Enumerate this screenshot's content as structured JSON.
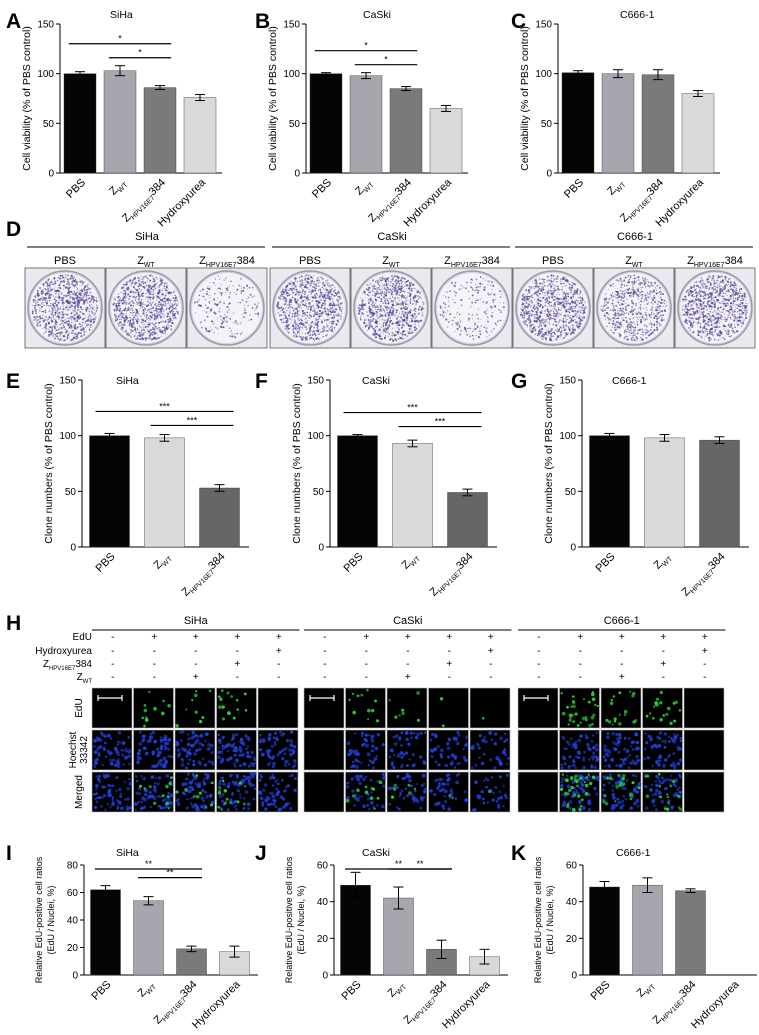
{
  "figure": {
    "panel_letters": [
      "A",
      "B",
      "C",
      "D",
      "E",
      "F",
      "G",
      "H",
      "I",
      "J",
      "K"
    ]
  },
  "chart_data": [
    {
      "panel": "A",
      "type": "bar",
      "title": "SiHa",
      "ylabel": "Cell viability (% of PBS control)",
      "ylim": [
        0,
        150
      ],
      "yticks": [
        0,
        50,
        100,
        150
      ],
      "categories": [
        {
          "main": "PBS",
          "sub": ""
        },
        {
          "main": "Z",
          "sub": "WT",
          "after": ""
        },
        {
          "main": "Z",
          "sub": "HPV16E7",
          "after": "384"
        },
        {
          "main": "Hydroxyurea",
          "sub": ""
        }
      ],
      "values": [
        100,
        103,
        86,
        76
      ],
      "errors": [
        2,
        5,
        2,
        3
      ],
      "colors": [
        "#050505",
        "#a6a6ae",
        "#7a7a7a",
        "#d9d9d9"
      ],
      "significance": [
        {
          "from": 0,
          "to": 2,
          "label": "*"
        },
        {
          "from": 1,
          "to": 2,
          "label": "*"
        }
      ]
    },
    {
      "panel": "B",
      "type": "bar",
      "title": "CaSki",
      "ylabel": "Cell viability (% of PBS control)",
      "ylim": [
        0,
        150
      ],
      "yticks": [
        0,
        50,
        100,
        150
      ],
      "categories": [
        {
          "main": "PBS",
          "sub": ""
        },
        {
          "main": "Z",
          "sub": "WT",
          "after": ""
        },
        {
          "main": "Z",
          "sub": "HPV16E7",
          "after": "384"
        },
        {
          "main": "Hydroxyurea",
          "sub": ""
        }
      ],
      "values": [
        100,
        98,
        85,
        65
      ],
      "errors": [
        1,
        3,
        2,
        3
      ],
      "colors": [
        "#050505",
        "#a6a6ae",
        "#7a7a7a",
        "#d9d9d9"
      ],
      "significance": [
        {
          "from": 0,
          "to": 2,
          "label": "*"
        },
        {
          "from": 1,
          "to": 2,
          "label": "*"
        }
      ]
    },
    {
      "panel": "C",
      "type": "bar",
      "title": "C666-1",
      "ylabel": "Cell viability (% of PBS control)",
      "ylim": [
        0,
        150
      ],
      "yticks": [
        0,
        50,
        100,
        150
      ],
      "categories": [
        {
          "main": "PBS",
          "sub": ""
        },
        {
          "main": "Z",
          "sub": "WT",
          "after": ""
        },
        {
          "main": "Z",
          "sub": "HPV16E7",
          "after": "384"
        },
        {
          "main": "Hydroxyurea",
          "sub": ""
        }
      ],
      "values": [
        101,
        100,
        99,
        80
      ],
      "errors": [
        2,
        4,
        5,
        3
      ],
      "colors": [
        "#050505",
        "#a6a6ae",
        "#7a7a7a",
        "#d9d9d9"
      ],
      "significance": []
    },
    {
      "panel": "E",
      "type": "bar",
      "title": "SiHa",
      "ylabel": "Clone numbers (% of PBS control)",
      "ylim": [
        0,
        150
      ],
      "yticks": [
        0,
        50,
        100,
        150
      ],
      "categories": [
        {
          "main": "PBS",
          "sub": ""
        },
        {
          "main": "Z",
          "sub": "WT",
          "after": ""
        },
        {
          "main": "Z",
          "sub": "HPV16E7",
          "after": "384"
        }
      ],
      "values": [
        100,
        98,
        53
      ],
      "errors": [
        2,
        3,
        3
      ],
      "colors": [
        "#050505",
        "#d9d9d9",
        "#666666"
      ],
      "significance": [
        {
          "from": 0,
          "to": 2,
          "label": "***"
        },
        {
          "from": 1,
          "to": 2,
          "label": "***"
        }
      ]
    },
    {
      "panel": "F",
      "type": "bar",
      "title": "CaSki",
      "ylabel": "Clone numbers (% of PBS control)",
      "ylim": [
        0,
        150
      ],
      "yticks": [
        0,
        50,
        100,
        150
      ],
      "categories": [
        {
          "main": "PBS",
          "sub": ""
        },
        {
          "main": "Z",
          "sub": "WT",
          "after": ""
        },
        {
          "main": "Z",
          "sub": "HPV16E7",
          "after": "384"
        }
      ],
      "values": [
        100,
        93,
        49
      ],
      "errors": [
        1,
        3,
        3
      ],
      "colors": [
        "#050505",
        "#d9d9d9",
        "#666666"
      ],
      "significance": [
        {
          "from": 0,
          "to": 2,
          "label": "***"
        },
        {
          "from": 1,
          "to": 2,
          "label": "***"
        }
      ]
    },
    {
      "panel": "G",
      "type": "bar",
      "title": "C666-1",
      "ylabel": "Clone numbers (% of PBS control)",
      "ylim": [
        0,
        150
      ],
      "yticks": [
        0,
        50,
        100,
        150
      ],
      "categories": [
        {
          "main": "PBS",
          "sub": ""
        },
        {
          "main": "Z",
          "sub": "WT",
          "after": ""
        },
        {
          "main": "Z",
          "sub": "HPV16E7",
          "after": "384"
        }
      ],
      "values": [
        100,
        98,
        96
      ],
      "errors": [
        2,
        3,
        3
      ],
      "colors": [
        "#050505",
        "#d9d9d9",
        "#666666"
      ],
      "significance": []
    },
    {
      "panel": "I",
      "type": "bar",
      "title": "SiHa",
      "ylabel": "Relative EdU-positive cell ratios (EdU / Nuclei, %)",
      "ylabel_lines": [
        "Relative EdU-positive cell ratios",
        "(EdU / Nuclei, %)"
      ],
      "ylim": [
        0,
        80
      ],
      "yticks": [
        0,
        20,
        40,
        60,
        80
      ],
      "categories": [
        {
          "main": "PBS",
          "sub": ""
        },
        {
          "main": "Z",
          "sub": "WT",
          "after": ""
        },
        {
          "main": "Z",
          "sub": "HPV16E7",
          "after": "384"
        },
        {
          "main": "Hydroxyurea",
          "sub": ""
        }
      ],
      "values": [
        62,
        54,
        19,
        17
      ],
      "errors": [
        3,
        3,
        2,
        4
      ],
      "colors": [
        "#050505",
        "#a6a6ae",
        "#7a7a7a",
        "#d9d9d9"
      ],
      "significance": [
        {
          "from": 0,
          "to": 2,
          "label": "**"
        },
        {
          "from": 1,
          "to": 2,
          "label": "**"
        }
      ]
    },
    {
      "panel": "J",
      "type": "bar",
      "title": "CaSki",
      "ylabel": "Relative EdU-positive cell ratios (EdU / Nuclei, %)",
      "ylabel_lines": [
        "Relative EdU-positive cell ratios",
        "(EdU / Nuclei, %)"
      ],
      "ylim": [
        0,
        60
      ],
      "yticks": [
        0,
        20,
        40,
        60
      ],
      "categories": [
        {
          "main": "PBS",
          "sub": ""
        },
        {
          "main": "Z",
          "sub": "WT",
          "after": ""
        },
        {
          "main": "Z",
          "sub": "HPV16E7",
          "after": "384"
        },
        {
          "main": "Hydroxyurea",
          "sub": ""
        }
      ],
      "values": [
        49,
        42,
        14,
        10
      ],
      "errors": [
        7,
        6,
        5,
        4
      ],
      "colors": [
        "#050505",
        "#a6a6ae",
        "#7a7a7a",
        "#d9d9d9"
      ],
      "significance": [
        {
          "from": 0,
          "to": 2,
          "label": "**"
        },
        {
          "from": 1,
          "to": 2,
          "label": "**"
        }
      ]
    },
    {
      "panel": "K",
      "type": "bar",
      "title": "C666-1",
      "ylabel": "Relative EdU-positive cell ratios (EdU / Nuclei, %)",
      "ylabel_lines": [
        "Relative EdU-positive cell ratios",
        "(EdU / Nuclei, %)"
      ],
      "ylim": [
        0,
        60
      ],
      "yticks": [
        0,
        20,
        40,
        60
      ],
      "categories": [
        {
          "main": "PBS",
          "sub": ""
        },
        {
          "main": "Z",
          "sub": "WT",
          "after": ""
        },
        {
          "main": "Z",
          "sub": "HPV16E7",
          "after": "384"
        },
        {
          "main": "Hydroxyurea",
          "sub": ""
        }
      ],
      "values": [
        48,
        49,
        46,
        null
      ],
      "errors": [
        3,
        4,
        1,
        null
      ],
      "colors": [
        "#050505",
        "#a6a6ae",
        "#7a7a7a",
        "#d9d9d9"
      ],
      "significance": []
    }
  ],
  "panel_d": {
    "groups": [
      {
        "name": "SiHa",
        "wells": [
          {
            "main": "PBS",
            "sub": "",
            "after": "",
            "density": "high"
          },
          {
            "main": "Z",
            "sub": "WT",
            "after": "",
            "density": "high"
          },
          {
            "main": "Z",
            "sub": "HPV16E7",
            "after": "384",
            "density": "low"
          }
        ]
      },
      {
        "name": "CaSki",
        "wells": [
          {
            "main": "PBS",
            "sub": "",
            "after": "",
            "density": "high"
          },
          {
            "main": "Z",
            "sub": "WT",
            "after": "",
            "density": "high"
          },
          {
            "main": "Z",
            "sub": "HPV16E7",
            "after": "384",
            "density": "low"
          }
        ]
      },
      {
        "name": "C666-1",
        "wells": [
          {
            "main": "PBS",
            "sub": "",
            "after": "",
            "density": "high"
          },
          {
            "main": "Z",
            "sub": "WT",
            "after": "",
            "density": "medium"
          },
          {
            "main": "Z",
            "sub": "HPV16E7",
            "after": "384",
            "density": "high"
          }
        ]
      }
    ],
    "stain_color": "#5b4a9a"
  },
  "panel_h": {
    "groups": [
      "SiHa",
      "CaSki",
      "C666-1"
    ],
    "row_labels": [
      {
        "main": "EdU",
        "sub": "",
        "after": ""
      },
      {
        "main": "Hydroxyurea",
        "sub": "",
        "after": ""
      },
      {
        "main": "Z",
        "sub": "HPV16E7",
        "after": "384"
      },
      {
        "main": "Z",
        "sub": "WT",
        "after": ""
      }
    ],
    "conditions": [
      [
        "-",
        "-",
        "-",
        "-"
      ],
      [
        "+",
        "-",
        "-",
        "-"
      ],
      [
        "+",
        "-",
        "-",
        "+"
      ],
      [
        "+",
        "-",
        "+",
        "-"
      ],
      [
        "+",
        "+",
        "-",
        "-"
      ]
    ],
    "image_rows": [
      "EdU",
      "Hoechst 33342",
      "Merged"
    ],
    "edu_density": [
      [
        0,
        0.25,
        0.2,
        0.3,
        0
      ],
      [
        0,
        0.25,
        0.15,
        0.05,
        0.03
      ],
      [
        0,
        0.7,
        0.4,
        0.4,
        0
      ]
    ],
    "nuclei_density": [
      [
        0.9,
        0.9,
        0.9,
        0.9,
        0.9
      ],
      [
        0,
        0.6,
        0.6,
        0.6,
        0.5
      ],
      [
        0,
        0.9,
        0.8,
        0.8,
        0
      ]
    ],
    "edu_color": "#2bd43a",
    "nuclei_color": "#1f3fd6"
  }
}
